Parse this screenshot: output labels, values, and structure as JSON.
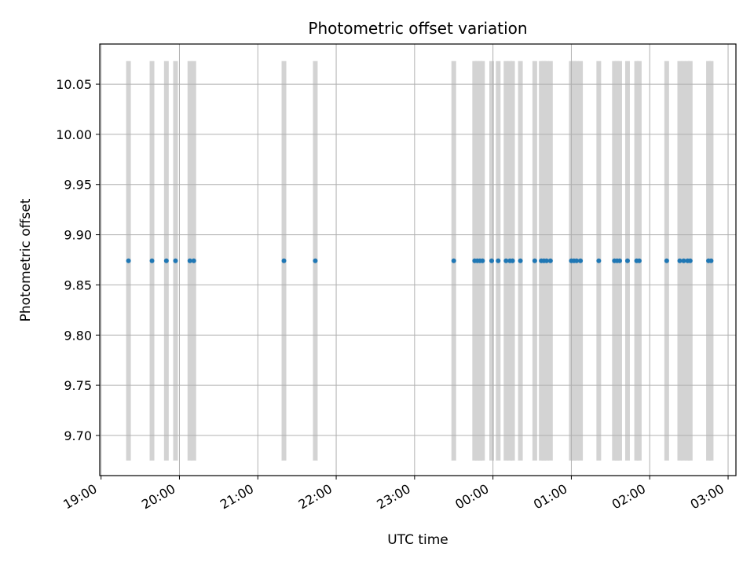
{
  "chart_data": {
    "type": "scatter",
    "title": "Photometric offset variation",
    "xlabel": "UTC time",
    "ylabel": "Photometric offset",
    "xlim": [
      "18:59",
      "03:06"
    ],
    "ylim": [
      9.66,
      10.09
    ],
    "x_ticks": [
      "19:00",
      "20:00",
      "21:00",
      "22:00",
      "23:00",
      "00:00",
      "01:00",
      "02:00",
      "03:00"
    ],
    "y_ticks": [
      "9.70",
      "9.75",
      "9.80",
      "9.85",
      "9.90",
      "9.95",
      "10.00",
      "10.05"
    ],
    "grid": true,
    "point_color": "#1f77b4",
    "band_color": "#d3d3d3",
    "band_range": [
      9.675,
      10.073
    ],
    "series": [
      {
        "y": 9.874,
        "x": [
          "19:21",
          "19:39",
          "19:50",
          "19:57",
          "20:08",
          "20:11",
          "21:20",
          "21:44",
          "23:30",
          "23:46",
          "23:48",
          "23:50",
          "23:52",
          "23:59",
          "00:04",
          "00:10",
          "00:13",
          "00:15",
          "00:21",
          "00:32",
          "00:37",
          "00:39",
          "00:41",
          "00:44",
          "01:00",
          "01:02",
          "01:04",
          "01:07",
          "01:21",
          "01:33",
          "01:35",
          "01:37",
          "01:43",
          "01:50",
          "01:52",
          "02:13",
          "02:23",
          "02:26",
          "02:29",
          "02:31",
          "02:45",
          "02:47"
        ]
      }
    ]
  }
}
